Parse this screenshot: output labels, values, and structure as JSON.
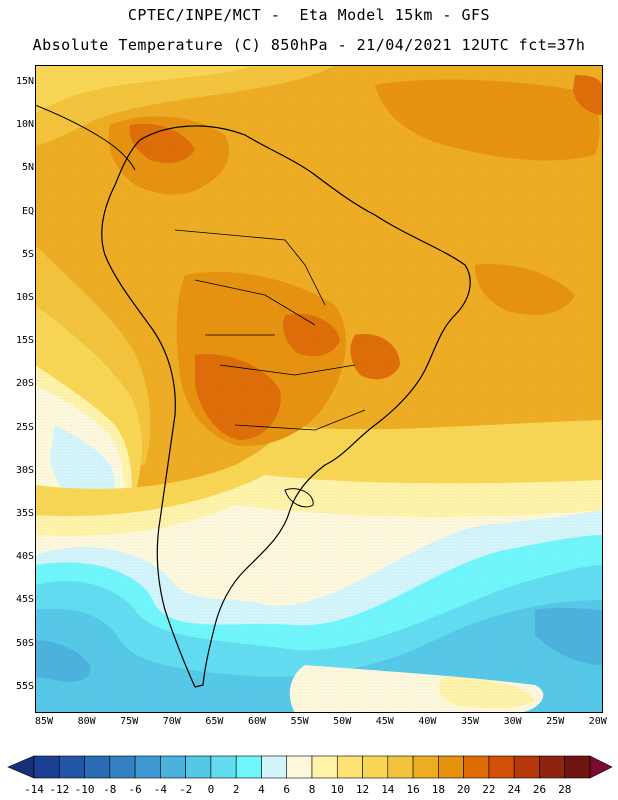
{
  "header": {
    "line1": "CPTEC/INPE/MCT -  Eta Model 15km - GFS",
    "line2": "Absolute Temperature (C) 850hPa - 21/04/2021 12UTC fct=37h"
  },
  "map": {
    "lat_labels": [
      "15N",
      "10N",
      "5N",
      "EQ",
      "5S",
      "10S",
      "15S",
      "20S",
      "25S",
      "30S",
      "35S",
      "40S",
      "45S",
      "50S",
      "55S"
    ],
    "lon_labels": [
      "85W",
      "80W",
      "75W",
      "70W",
      "65W",
      "60W",
      "55W",
      "50W",
      "45W",
      "40W",
      "35W",
      "30W",
      "25W",
      "20W"
    ]
  },
  "colorbar": {
    "labels": [
      "-14",
      "-12",
      "-10",
      "-8",
      "-6",
      "-4",
      "-2",
      "0",
      "2",
      "4",
      "6",
      "8",
      "10",
      "12",
      "14",
      "16",
      "18",
      "20",
      "22",
      "24",
      "26",
      "28"
    ],
    "colors": [
      "#1b3f94",
      "#2356a6",
      "#2a6cb6",
      "#3482c4",
      "#3f9ad2",
      "#4bb2dd",
      "#55c8e8",
      "#61dcf1",
      "#6ff6fb",
      "#d4f4fb",
      "#fdf8dc",
      "#fef3a9",
      "#fbe273",
      "#f8d552",
      "#f2c33b",
      "#eeac22",
      "#e6920f",
      "#de6d08",
      "#d34e06",
      "#b5370a",
      "#8d250e",
      "#6e1512"
    ]
  }
}
